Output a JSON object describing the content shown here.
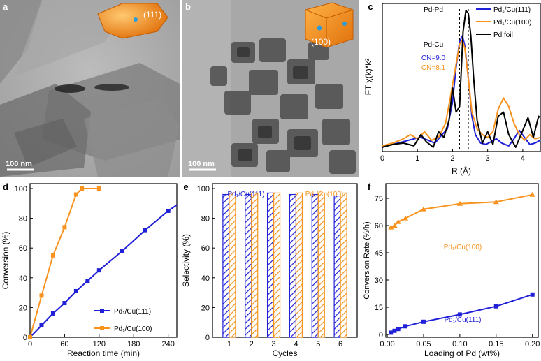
{
  "figure": {
    "panel_a": {
      "label": "a",
      "scale_bar": "100 nm",
      "facet": "(111)"
    },
    "panel_b": {
      "label": "b",
      "scale_bar": "100 nm",
      "facet": "(100)"
    }
  },
  "colors": {
    "blue": "#2020d8",
    "orange": "#f7931e",
    "black": "#000000"
  },
  "chart_data": [
    {
      "id": "c",
      "label": "c",
      "type": "line",
      "xlabel": "R (Å)",
      "ylabel": "FT χ(k)*k²",
      "xlim": [
        0,
        4.5
      ],
      "ylim": [
        0,
        1.05
      ],
      "xticks": [
        "0",
        "1",
        "2",
        "3",
        "4"
      ],
      "legend": [
        "Pd₁/Cu(111)",
        "Pd₁/Cu(100)",
        "Pd foil"
      ],
      "annotations": {
        "pdpd": "Pd-Pd",
        "pdcu": "Pd-Cu",
        "cn1": "CN=9.0",
        "cn2": "CN=8.1"
      },
      "series": [
        {
          "name": "Pd₁/Cu(111)",
          "color": "blue",
          "x": [
            0,
            0.3,
            0.6,
            0.9,
            1.1,
            1.3,
            1.5,
            1.7,
            1.85,
            2.0,
            2.1,
            2.2,
            2.28,
            2.35,
            2.45,
            2.55,
            2.65,
            2.8,
            2.95,
            3.1,
            3.25,
            3.4,
            3.6,
            3.75,
            3.9,
            4.05,
            4.2,
            4.35,
            4.5
          ],
          "y": [
            0.04,
            0.05,
            0.07,
            0.09,
            0.1,
            0.08,
            0.06,
            0.12,
            0.16,
            0.35,
            0.6,
            0.78,
            0.82,
            0.75,
            0.52,
            0.25,
            0.12,
            0.06,
            0.05,
            0.07,
            0.09,
            0.06,
            0.04,
            0.09,
            0.15,
            0.1,
            0.05,
            0.06,
            0.08
          ]
        },
        {
          "name": "Pd₁/Cu(100)",
          "color": "orange",
          "x": [
            0,
            0.3,
            0.6,
            0.8,
            1.0,
            1.2,
            1.4,
            1.6,
            1.8,
            1.95,
            2.1,
            2.2,
            2.28,
            2.35,
            2.45,
            2.55,
            2.7,
            2.85,
            3.0,
            3.15,
            3.3,
            3.45,
            3.6,
            3.75,
            3.9,
            4.05,
            4.2,
            4.35,
            4.5
          ],
          "y": [
            0.04,
            0.06,
            0.09,
            0.12,
            0.09,
            0.14,
            0.08,
            0.1,
            0.2,
            0.4,
            0.62,
            0.76,
            0.79,
            0.73,
            0.52,
            0.28,
            0.16,
            0.12,
            0.1,
            0.14,
            0.3,
            0.38,
            0.32,
            0.2,
            0.12,
            0.08,
            0.12,
            0.09,
            0.1
          ]
        },
        {
          "name": "Pd foil",
          "color": "black",
          "x": [
            0,
            0.3,
            0.6,
            0.9,
            1.1,
            1.25,
            1.45,
            1.6,
            1.75,
            1.9,
            2.0,
            2.1,
            2.2,
            2.3,
            2.38,
            2.45,
            2.52,
            2.6,
            2.7,
            2.85,
            3.0,
            3.15,
            3.3,
            3.45,
            3.6,
            3.8,
            4.0,
            4.15,
            4.3,
            4.45,
            4.5
          ],
          "y": [
            0.03,
            0.05,
            0.06,
            0.04,
            0.12,
            0.07,
            0.03,
            0.14,
            0.1,
            0.22,
            0.45,
            0.28,
            0.32,
            0.85,
            1.0,
            0.98,
            0.82,
            0.52,
            0.22,
            0.06,
            0.14,
            0.05,
            0.25,
            0.28,
            0.12,
            0.03,
            0.15,
            0.24,
            0.1,
            0.25,
            0.24
          ]
        }
      ]
    },
    {
      "id": "d",
      "label": "d",
      "type": "line",
      "xlabel": "Reaction time (min)",
      "ylabel": "Conversion (%)",
      "xlim": [
        0,
        255
      ],
      "ylim": [
        0,
        100
      ],
      "xticks": [
        0,
        60,
        120,
        180,
        240
      ],
      "yticks": [
        0,
        20,
        40,
        60,
        80,
        100
      ],
      "series": [
        {
          "name": "Pd₁/Cu(111)",
          "color": "blue",
          "x": [
            0,
            20,
            40,
            60,
            80,
            100,
            120,
            160,
            200,
            240,
            255
          ],
          "y": [
            0,
            8,
            16,
            23,
            31,
            38,
            45,
            58,
            72,
            85,
            89
          ],
          "markers": [
            true,
            true,
            true,
            true,
            true,
            true,
            true,
            true,
            true,
            true,
            false
          ]
        },
        {
          "name": "Pd₁/Cu(100)",
          "color": "orange",
          "x": [
            0,
            20,
            40,
            60,
            80,
            90,
            120
          ],
          "y": [
            0,
            28,
            55,
            74,
            96,
            100,
            100
          ],
          "markers": [
            true,
            true,
            true,
            true,
            true,
            true,
            true
          ]
        }
      ]
    },
    {
      "id": "e",
      "label": "e",
      "type": "bar",
      "xlabel": "Cycles",
      "ylabel": "Selectivity (%)",
      "ylim": [
        0,
        100
      ],
      "yticks": [
        0,
        20,
        40,
        60,
        80,
        100
      ],
      "categories": [
        "1",
        "2",
        "3",
        "4",
        "5",
        "6"
      ],
      "series": [
        {
          "name": "Pd₁/Cu(111)",
          "color": "blue",
          "values": [
            96,
            96,
            97,
            96,
            96,
            95
          ]
        },
        {
          "name": "Pd₁/Cu(100)",
          "color": "orange",
          "values": [
            97,
            97,
            97,
            97,
            97,
            97
          ]
        }
      ]
    },
    {
      "id": "f",
      "label": "f",
      "type": "line",
      "xlabel": "Loading of Pd (wt%)",
      "ylabel": "Conversion Rate (%/h)",
      "xlim": [
        0,
        0.2
      ],
      "ylim": [
        0,
        80
      ],
      "xticks": [
        "0.00",
        "0.05",
        "0.10",
        "0.15",
        "0.20"
      ],
      "yticks": [
        0,
        15,
        30,
        45,
        60,
        75
      ],
      "series": [
        {
          "name": "Pd₁/Cu(100)",
          "color": "orange",
          "marker": "triangle",
          "x": [
            0.005,
            0.01,
            0.015,
            0.025,
            0.05,
            0.1,
            0.15,
            0.2
          ],
          "y": [
            59,
            60,
            62,
            64,
            69,
            72,
            73,
            77
          ]
        },
        {
          "name": "Pd₁/Cu(111)",
          "color": "blue",
          "marker": "square",
          "x": [
            0.005,
            0.01,
            0.015,
            0.025,
            0.05,
            0.1,
            0.15,
            0.2
          ],
          "y": [
            1,
            2,
            3,
            4.5,
            7,
            11,
            15.5,
            22
          ]
        }
      ]
    }
  ]
}
